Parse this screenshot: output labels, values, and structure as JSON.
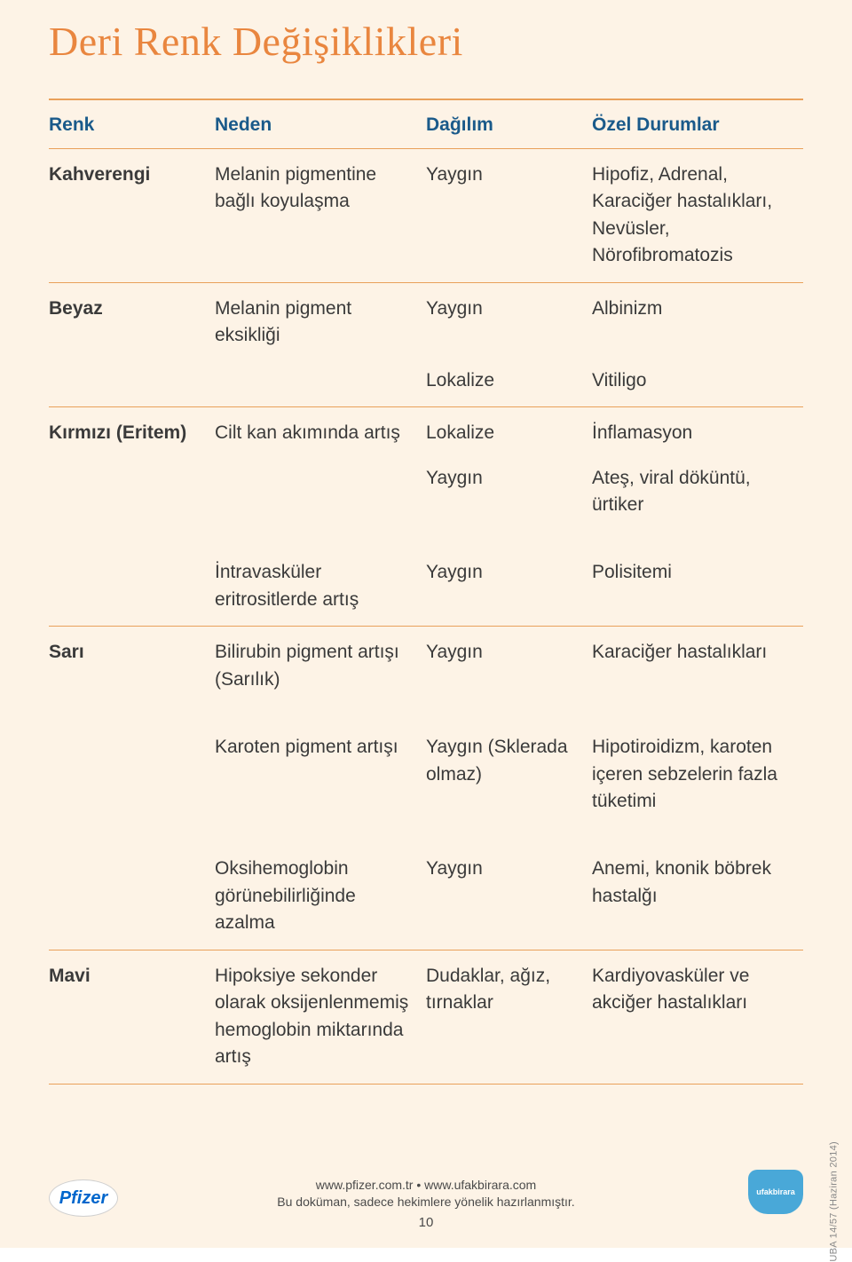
{
  "colors": {
    "background": "#fdf3e6",
    "title": "#e9863f",
    "header_text": "#1a5a8a",
    "body_text": "#3a3a3a",
    "rule": "#e9a05a",
    "pfizer_bg": "#ffffff",
    "pfizer_text": "#0066cc",
    "ufak_bg": "#49a8d8",
    "ufak_text": "#ffffff",
    "side_text": "#888888",
    "footer_text": "#4a4a4a"
  },
  "title": "Deri Renk Değişiklikleri",
  "headers": {
    "renk": "Renk",
    "neden": "Neden",
    "dagilim": "Dağılım",
    "ozel": "Özel Durumlar"
  },
  "rows": [
    {
      "type": "data",
      "renk": "Kahverengi",
      "neden": "Melanin pigmentine bağlı koyulaşma",
      "dagilim": "Yaygın",
      "ozel": "Hipofiz, Adrenal, Karaciğer hastalıkları, Nevüsler, Nörofibromatozis",
      "hr_after": true
    },
    {
      "type": "data",
      "renk": "Beyaz",
      "neden": "Melanin pigment eksikliği",
      "dagilim": "Yaygın",
      "ozel": "Albinizm",
      "hr_after": false
    },
    {
      "type": "sub",
      "renk": "",
      "neden": "",
      "dagilim": "Lokalize",
      "ozel": "Vitiligo",
      "hr_after": true
    },
    {
      "type": "data",
      "renk": "Kırmızı (Eritem)",
      "neden": "Cilt kan akımında artış",
      "dagilim": "Lokalize",
      "ozel": "İnflamasyon",
      "hr_after": false
    },
    {
      "type": "sub",
      "renk": "",
      "neden": "",
      "dagilim": "Yaygın",
      "ozel": "Ateş, viral döküntü, ürtiker",
      "hr_after": false
    },
    {
      "type": "gap",
      "hr_after": false
    },
    {
      "type": "data",
      "renk": "",
      "neden": "İntravasküler eritrositlerde artış",
      "dagilim": "Yaygın",
      "ozel": "Polisitemi",
      "hr_after": true
    },
    {
      "type": "data",
      "renk": "Sarı",
      "neden": "Bilirubin pigment artışı (Sarılık)",
      "dagilim": "Yaygın",
      "ozel": "Karaciğer hastalıkları",
      "hr_after": false
    },
    {
      "type": "gap",
      "hr_after": false
    },
    {
      "type": "data",
      "renk": "",
      "neden": "Karoten pigment artışı",
      "dagilim": "Yaygın (Sklerada olmaz)",
      "ozel": "Hipotiroidizm, karoten içeren sebzelerin fazla tüketimi",
      "hr_after": false
    },
    {
      "type": "gap",
      "hr_after": false
    },
    {
      "type": "data",
      "renk": "",
      "neden": "Oksihemoglobin görünebilirliğinde azalma",
      "dagilim": "Yaygın",
      "ozel": "Anemi, knonik böbrek hastalğı",
      "hr_after": true
    },
    {
      "type": "data",
      "renk": "Mavi",
      "neden": "Hipoksiye sekonder olarak oksijenlenmemiş hemoglobin miktarında artış",
      "dagilim": "Dudaklar, ağız, tırnaklar",
      "ozel": "Kardiyovasküler ve akciğer hastalıkları",
      "hr_after": true
    }
  ],
  "footer": {
    "line1": "www.pfizer.com.tr • www.ufakbirara.com",
    "line2": "Bu doküman, sadece hekimlere yönelik hazırlanmıştır.",
    "page": "10",
    "pfizer": "Pfizer",
    "ufak": "ufakbirara",
    "side": "UBA 14/57 (Haziran 2014)"
  }
}
